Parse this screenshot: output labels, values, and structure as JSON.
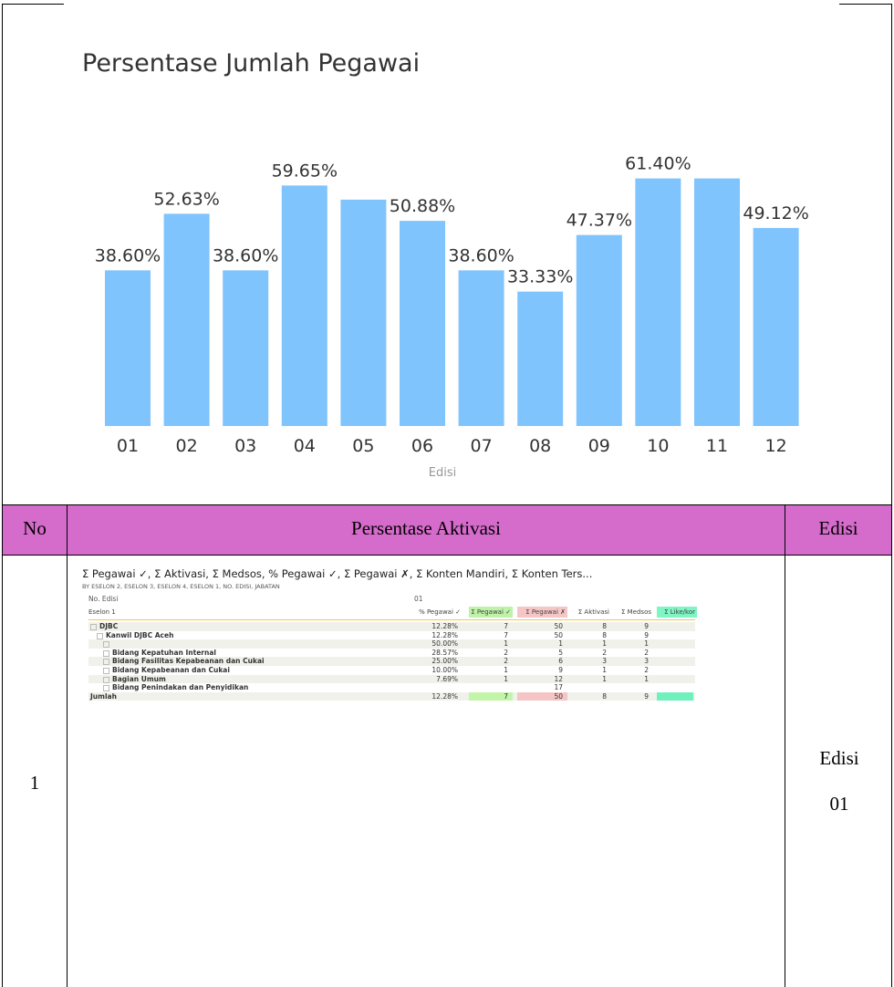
{
  "chart_data": {
    "type": "bar",
    "title": "Persentase Jumlah Pegawai",
    "x_label": "Edisi",
    "categories": [
      "01",
      "02",
      "03",
      "04",
      "05",
      "06",
      "07",
      "08",
      "09",
      "10",
      "11",
      "12"
    ],
    "values": [
      38.6,
      52.63,
      38.6,
      59.65,
      56.14,
      50.88,
      38.6,
      33.33,
      47.37,
      61.4,
      61.4,
      49.12
    ],
    "value_labels": [
      "38.60%",
      "52.63%",
      "38.60%",
      "59.65%",
      null,
      "50.88%",
      "38.60%",
      "33.33%",
      "47.37%",
      "61.40%",
      null,
      "49.12%"
    ],
    "color": "#7fc4fd"
  },
  "table": {
    "header": [
      "No",
      "Persentase Aktivasi",
      "Edisi"
    ],
    "rows": [
      [
        "1",
        null,
        "Edisi 01"
      ]
    ]
  },
  "report": {
    "heading": "Σ Pegawai ✓, Σ Aktivasi, Σ Medsos, % Pegawai ✓, Σ Pegawai ✗, Σ Konten Mandiri, Σ Konten Ters...",
    "subheading": "BY ESELON 2, ESELON 3, ESELON 4, ESELON 1, NO. EDISI, JABATAN",
    "edition_label": "No. Edisi",
    "edition": "01",
    "columns": [
      "Eselon 1",
      "% Pegawai ✓",
      "Σ Pegawai ✓",
      "Σ Pegawai ✗",
      "Σ Aktivasi",
      "Σ Medsos",
      "Σ Like/kor"
    ],
    "rows": [
      {
        "label": "DJBC",
        "cells": [
          "12.28%",
          "7",
          "50",
          "8",
          "9"
        ]
      },
      {
        "label": "Kanwil DJBC Aceh",
        "cells": [
          "12.28%",
          "7",
          "50",
          "8",
          "9"
        ]
      },
      {
        "label": null,
        "cells": [
          "50.00%",
          "1",
          "1",
          "1",
          "1"
        ]
      },
      {
        "label": "Bidang Kepatuhan Internal",
        "cells": [
          "28.57%",
          "2",
          "5",
          "2",
          "2"
        ]
      },
      {
        "label": "Bidang Fasilitas Kepabeanan dan Cukai",
        "cells": [
          "25.00%",
          "2",
          "6",
          "3",
          "3"
        ]
      },
      {
        "label": "Bidang Kepabeanan dan Cukai",
        "cells": [
          "10.00%",
          "1",
          "9",
          "1",
          "2"
        ]
      },
      {
        "label": "Bagian Umum",
        "cells": [
          "7.69%",
          "1",
          "12",
          "1",
          "1"
        ]
      },
      {
        "label": "Bidang Penindakan dan Penyidikan",
        "cells": [
          null,
          null,
          "17",
          null,
          null
        ]
      },
      {
        "label": "Jumlah",
        "cells": [
          "12.28%",
          "7",
          "50",
          "8",
          "9"
        ]
      }
    ]
  }
}
